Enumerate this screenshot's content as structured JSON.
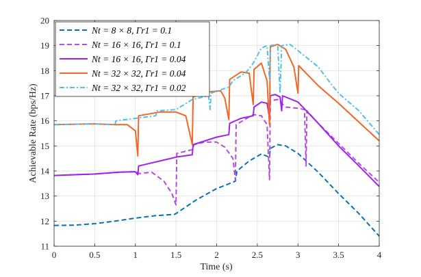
{
  "chart_data": {
    "type": "line",
    "title": "",
    "xlabel": "Time (s)",
    "ylabel": "Achievable Rate (bps/Hz)",
    "xlim": [
      0,
      4
    ],
    "ylim": [
      11,
      20
    ],
    "xticks": [
      "0",
      "0.5",
      "1",
      "1.5",
      "2",
      "2.5",
      "3",
      "3.5",
      "4"
    ],
    "yticks": [
      "11",
      "12",
      "13",
      "14",
      "15",
      "16",
      "17",
      "18",
      "19",
      "20"
    ],
    "grid": true,
    "legend_position": "top-left",
    "series": [
      {
        "name": "N_t = 8 × 8, Γ_r1 = 0.1",
        "legend": "Nt = 8 × 8, Γr1 = 0.1",
        "color": "#0072BD",
        "dash": "dashed",
        "points": [
          [
            0,
            11.83
          ],
          [
            0.25,
            11.84
          ],
          [
            0.5,
            11.9
          ],
          [
            0.75,
            12.0
          ],
          [
            1.0,
            12.12
          ],
          [
            1.25,
            12.22
          ],
          [
            1.48,
            12.27
          ],
          [
            1.5,
            12.3
          ],
          [
            1.75,
            12.85
          ],
          [
            2.0,
            13.3
          ],
          [
            2.2,
            13.55
          ],
          [
            2.23,
            13.6
          ],
          [
            2.25,
            14.0
          ],
          [
            2.4,
            14.4
          ],
          [
            2.55,
            14.68
          ],
          [
            2.65,
            14.55
          ],
          [
            2.66,
            14.9
          ],
          [
            2.75,
            15.05
          ],
          [
            2.85,
            15.0
          ],
          [
            3.0,
            14.7
          ],
          [
            3.25,
            13.95
          ],
          [
            3.5,
            13.1
          ],
          [
            3.75,
            12.3
          ],
          [
            4.0,
            11.4
          ]
        ]
      },
      {
        "name": "N_t = 16 × 16, Γ_r1 = 0.1",
        "legend": "Nt = 16 × 16, Γr1 = 0.1",
        "color": "#B44BE1",
        "dash": "dashed",
        "points": [
          [
            0,
            13.82
          ],
          [
            0.5,
            13.88
          ],
          [
            0.8,
            13.95
          ],
          [
            1.0,
            13.97
          ],
          [
            1.05,
            13.9
          ],
          [
            1.2,
            13.95
          ],
          [
            1.35,
            13.6
          ],
          [
            1.45,
            13.1
          ],
          [
            1.5,
            12.65
          ],
          [
            1.51,
            14.7
          ],
          [
            1.7,
            14.85
          ],
          [
            1.72,
            15.05
          ],
          [
            1.85,
            15.15
          ],
          [
            2.0,
            15.15
          ],
          [
            2.1,
            14.95
          ],
          [
            2.2,
            14.5
          ],
          [
            2.23,
            13.65
          ],
          [
            2.24,
            15.85
          ],
          [
            2.45,
            16.25
          ],
          [
            2.55,
            16.2
          ],
          [
            2.62,
            15.85
          ],
          [
            2.65,
            13.65
          ],
          [
            2.66,
            16.8
          ],
          [
            2.75,
            16.85
          ],
          [
            2.85,
            16.55
          ],
          [
            3.0,
            16.5
          ],
          [
            3.08,
            16.45
          ],
          [
            3.1,
            14.2
          ],
          [
            3.11,
            16.4
          ],
          [
            3.25,
            15.9
          ],
          [
            3.5,
            15.1
          ],
          [
            3.75,
            14.3
          ],
          [
            4.0,
            13.55
          ]
        ]
      },
      {
        "name": "N_t = 16 × 16, Γ_r1 = 0.04",
        "legend": "Nt = 16 × 16, Γr1 = 0.04",
        "color": "#A020F0",
        "dash": "solid",
        "points": [
          [
            0,
            13.82
          ],
          [
            0.5,
            13.88
          ],
          [
            0.8,
            13.95
          ],
          [
            1.0,
            13.97
          ],
          [
            1.03,
            13.85
          ],
          [
            1.04,
            14.2
          ],
          [
            1.5,
            14.55
          ],
          [
            1.7,
            14.65
          ],
          [
            1.71,
            15.05
          ],
          [
            2.0,
            15.35
          ],
          [
            2.15,
            15.45
          ],
          [
            2.16,
            15.9
          ],
          [
            2.3,
            16.1
          ],
          [
            2.45,
            16.2
          ],
          [
            2.46,
            16.55
          ],
          [
            2.55,
            16.75
          ],
          [
            2.62,
            16.7
          ],
          [
            2.65,
            16.1
          ],
          [
            2.66,
            17.0
          ],
          [
            2.72,
            17.05
          ],
          [
            2.78,
            16.95
          ],
          [
            2.8,
            16.4
          ],
          [
            2.81,
            17.0
          ],
          [
            3.0,
            16.75
          ],
          [
            3.25,
            15.9
          ],
          [
            3.5,
            15.0
          ],
          [
            3.75,
            14.2
          ],
          [
            4.0,
            13.38
          ]
        ]
      },
      {
        "name": "N_t = 32 × 32, Γ_r1 = 0.04",
        "legend": "Nt = 32 × 32, Γr1 = 0.04",
        "color": "#F26522",
        "dash": "solid",
        "points": [
          [
            0,
            15.85
          ],
          [
            0.5,
            15.88
          ],
          [
            0.75,
            15.85
          ],
          [
            0.9,
            15.85
          ],
          [
            1.0,
            15.6
          ],
          [
            1.03,
            14.6
          ],
          [
            1.04,
            16.2
          ],
          [
            1.3,
            16.35
          ],
          [
            1.5,
            16.35
          ],
          [
            1.62,
            16.2
          ],
          [
            1.7,
            15.05
          ],
          [
            1.71,
            16.95
          ],
          [
            1.9,
            17.15
          ],
          [
            2.05,
            17.2
          ],
          [
            2.1,
            16.9
          ],
          [
            2.15,
            16.05
          ],
          [
            2.16,
            17.65
          ],
          [
            2.3,
            17.95
          ],
          [
            2.4,
            17.9
          ],
          [
            2.45,
            16.65
          ],
          [
            2.46,
            18.05
          ],
          [
            2.55,
            18.3
          ],
          [
            2.62,
            17.6
          ],
          [
            2.65,
            15.85
          ],
          [
            2.66,
            18.95
          ],
          [
            2.75,
            19.05
          ],
          [
            2.8,
            18.95
          ],
          [
            2.85,
            18.85
          ],
          [
            2.95,
            18.15
          ],
          [
            3.0,
            17.1
          ],
          [
            3.01,
            18.2
          ],
          [
            3.25,
            17.4
          ],
          [
            3.5,
            16.7
          ],
          [
            3.75,
            15.95
          ],
          [
            4.0,
            15.2
          ]
        ]
      },
      {
        "name": "N_t = 32 × 32, Γ_r1 = 0.02",
        "legend": "Nt = 32 × 32, Γr1 = 0.02",
        "color": "#4DBEEE",
        "dash": "dashdot",
        "points": [
          [
            0,
            15.85
          ],
          [
            0.5,
            15.88
          ],
          [
            0.75,
            15.85
          ],
          [
            0.76,
            16.0
          ],
          [
            1.25,
            16.2
          ],
          [
            1.27,
            16.4
          ],
          [
            1.5,
            16.45
          ],
          [
            1.55,
            16.55
          ],
          [
            1.7,
            16.85
          ],
          [
            1.9,
            17.0
          ],
          [
            1.92,
            16.45
          ],
          [
            1.93,
            17.1
          ],
          [
            2.15,
            17.35
          ],
          [
            2.2,
            17.6
          ],
          [
            2.35,
            17.9
          ],
          [
            2.38,
            18.0
          ],
          [
            2.45,
            18.3
          ],
          [
            2.5,
            18.6
          ],
          [
            2.55,
            18.9
          ],
          [
            2.62,
            19.0
          ],
          [
            2.65,
            17.65
          ],
          [
            2.66,
            19.0
          ],
          [
            2.75,
            19.05
          ],
          [
            2.78,
            17.1
          ],
          [
            2.8,
            19.0
          ],
          [
            2.9,
            19.05
          ],
          [
            3.0,
            18.8
          ],
          [
            3.25,
            18.15
          ],
          [
            3.4,
            17.5
          ],
          [
            3.5,
            17.1
          ],
          [
            3.75,
            16.4
          ],
          [
            4.0,
            15.45
          ]
        ]
      }
    ]
  }
}
